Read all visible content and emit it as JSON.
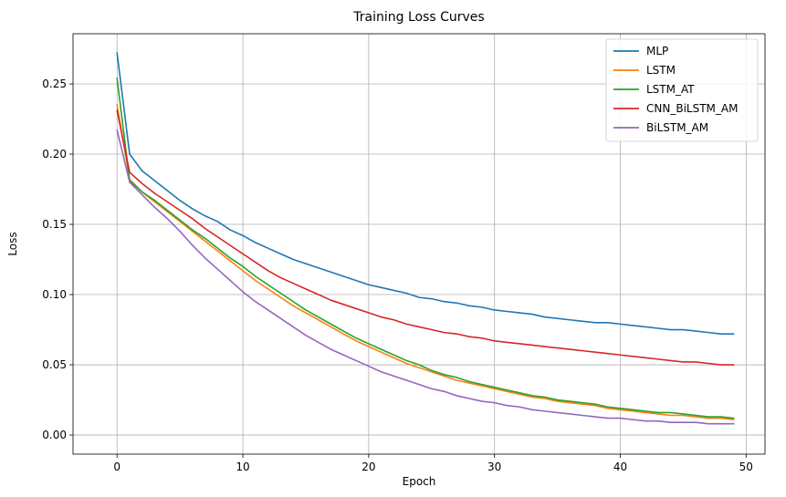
{
  "chart_data": {
    "type": "line",
    "title": "Training Loss Curves",
    "xlabel": "Epoch",
    "ylabel": "Loss",
    "xlim": [
      -3.5,
      51.5
    ],
    "ylim": [
      -0.0136,
      0.2857
    ],
    "xticks": [
      0,
      10,
      20,
      30,
      40,
      50
    ],
    "xtick_labels": [
      "0",
      "10",
      "20",
      "30",
      "40",
      "50"
    ],
    "yticks": [
      0.0,
      0.05,
      0.1,
      0.15,
      0.2,
      0.25
    ],
    "ytick_labels": [
      "0.00",
      "0.05",
      "0.10",
      "0.15",
      "0.20",
      "0.25"
    ],
    "grid": true,
    "legend_position": "top-right",
    "x": [
      0,
      1,
      2,
      3,
      4,
      5,
      6,
      7,
      8,
      9,
      10,
      11,
      12,
      13,
      14,
      15,
      16,
      17,
      18,
      19,
      20,
      21,
      22,
      23,
      24,
      25,
      26,
      27,
      28,
      29,
      30,
      31,
      32,
      33,
      34,
      35,
      36,
      37,
      38,
      39,
      40,
      41,
      42,
      43,
      44,
      45,
      46,
      47,
      48,
      49
    ],
    "series": [
      {
        "name": "MLP",
        "color": "#1f77b4",
        "values": [
          0.272,
          0.2,
          0.188,
          0.181,
          0.174,
          0.167,
          0.161,
          0.156,
          0.152,
          0.146,
          0.142,
          0.137,
          0.133,
          0.129,
          0.125,
          0.122,
          0.119,
          0.116,
          0.113,
          0.11,
          0.107,
          0.105,
          0.103,
          0.101,
          0.098,
          0.097,
          0.095,
          0.094,
          0.092,
          0.091,
          0.089,
          0.088,
          0.087,
          0.086,
          0.084,
          0.083,
          0.082,
          0.081,
          0.08,
          0.08,
          0.079,
          0.078,
          0.077,
          0.076,
          0.075,
          0.075,
          0.074,
          0.073,
          0.072,
          0.072
        ]
      },
      {
        "name": "LSTM",
        "color": "#ff7f0e",
        "values": [
          0.235,
          0.182,
          0.173,
          0.166,
          0.159,
          0.152,
          0.145,
          0.138,
          0.131,
          0.124,
          0.117,
          0.11,
          0.104,
          0.098,
          0.092,
          0.087,
          0.082,
          0.077,
          0.072,
          0.067,
          0.063,
          0.059,
          0.055,
          0.051,
          0.048,
          0.045,
          0.042,
          0.039,
          0.037,
          0.035,
          0.033,
          0.031,
          0.029,
          0.027,
          0.026,
          0.024,
          0.023,
          0.022,
          0.021,
          0.019,
          0.018,
          0.017,
          0.016,
          0.015,
          0.014,
          0.014,
          0.013,
          0.012,
          0.012,
          0.011
        ]
      },
      {
        "name": "LSTM_AT",
        "color": "#2ca02c",
        "values": [
          0.254,
          0.181,
          0.173,
          0.167,
          0.16,
          0.153,
          0.146,
          0.14,
          0.133,
          0.126,
          0.12,
          0.113,
          0.107,
          0.101,
          0.095,
          0.089,
          0.084,
          0.079,
          0.074,
          0.069,
          0.065,
          0.061,
          0.057,
          0.053,
          0.05,
          0.046,
          0.043,
          0.041,
          0.038,
          0.036,
          0.034,
          0.032,
          0.03,
          0.028,
          0.027,
          0.025,
          0.024,
          0.023,
          0.022,
          0.02,
          0.019,
          0.018,
          0.017,
          0.016,
          0.016,
          0.015,
          0.014,
          0.013,
          0.013,
          0.012
        ]
      },
      {
        "name": "CNN_BiLSTM_AM",
        "color": "#d62728",
        "values": [
          0.231,
          0.187,
          0.179,
          0.172,
          0.166,
          0.16,
          0.154,
          0.147,
          0.141,
          0.135,
          0.129,
          0.123,
          0.117,
          0.112,
          0.108,
          0.104,
          0.1,
          0.096,
          0.093,
          0.09,
          0.087,
          0.084,
          0.082,
          0.079,
          0.077,
          0.075,
          0.073,
          0.072,
          0.07,
          0.069,
          0.067,
          0.066,
          0.065,
          0.064,
          0.063,
          0.062,
          0.061,
          0.06,
          0.059,
          0.058,
          0.057,
          0.056,
          0.055,
          0.054,
          0.053,
          0.052,
          0.052,
          0.051,
          0.05,
          0.05
        ]
      },
      {
        "name": "BiLSTM_AM",
        "color": "#9467bd",
        "values": [
          0.217,
          0.18,
          0.171,
          0.162,
          0.154,
          0.145,
          0.135,
          0.126,
          0.118,
          0.11,
          0.102,
          0.095,
          0.089,
          0.083,
          0.077,
          0.071,
          0.066,
          0.061,
          0.057,
          0.053,
          0.049,
          0.045,
          0.042,
          0.039,
          0.036,
          0.033,
          0.031,
          0.028,
          0.026,
          0.024,
          0.023,
          0.021,
          0.02,
          0.018,
          0.017,
          0.016,
          0.015,
          0.014,
          0.013,
          0.012,
          0.012,
          0.011,
          0.01,
          0.01,
          0.009,
          0.009,
          0.009,
          0.008,
          0.008,
          0.008
        ]
      }
    ]
  }
}
